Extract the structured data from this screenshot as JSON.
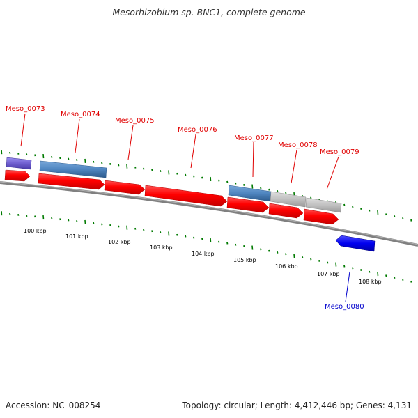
{
  "title": "Mesorhizobium sp. BNC1, complete genome",
  "footer": {
    "accession": "Accession: NC_008254",
    "topology": "Topology: circular; Length: 4,412,446 bp; Genes: 4,131"
  },
  "colors": {
    "cds_forward": "#ff0000",
    "cds_reverse": "#0000ee",
    "gene_blue": "#4f86c0",
    "gene_gray": "#c0c0c0",
    "gene_purple": "#7060d0",
    "backbone": "#808080",
    "ticks": "#007a00",
    "label_red": "#e00000",
    "label_blue": "#0000cc"
  },
  "axis": {
    "labels": [
      "100 kbp",
      "101 kbp",
      "102 kbp",
      "103 kbp",
      "104 kbp",
      "105 kbp",
      "106 kbp",
      "107 kbp",
      "108 kbp"
    ]
  },
  "genes": [
    {
      "name": "Meso_0073",
      "strand": "forward",
      "color": "label_red"
    },
    {
      "name": "Meso_0074",
      "strand": "forward",
      "color": "label_red"
    },
    {
      "name": "Meso_0075",
      "strand": "forward",
      "color": "label_red"
    },
    {
      "name": "Meso_0076",
      "strand": "forward",
      "color": "label_red"
    },
    {
      "name": "Meso_0077",
      "strand": "forward",
      "color": "label_red"
    },
    {
      "name": "Meso_0078",
      "strand": "forward",
      "color": "label_red"
    },
    {
      "name": "Meso_0079",
      "strand": "forward",
      "color": "label_red"
    },
    {
      "name": "Meso_0080",
      "strand": "reverse",
      "color": "label_blue"
    }
  ]
}
